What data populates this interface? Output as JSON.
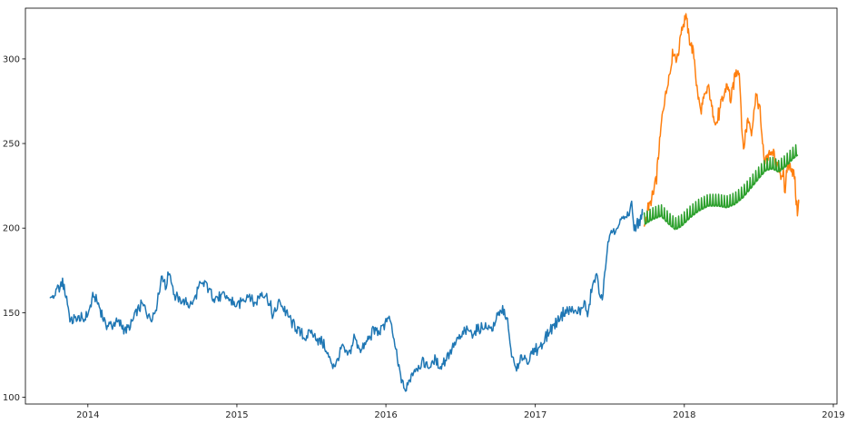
{
  "chart_data": {
    "type": "line",
    "title": "",
    "xlabel": "",
    "ylabel": "",
    "grid": false,
    "xlim": [
      "2013-08-01",
      "2019-01-10"
    ],
    "ylim": [
      96,
      330
    ],
    "x_ticks": [
      "2014",
      "2015",
      "2016",
      "2017",
      "2018",
      "2019"
    ],
    "x_tick_dates": [
      "2014-01-01",
      "2015-01-01",
      "2016-01-01",
      "2017-01-01",
      "2018-01-01",
      "2019-01-01"
    ],
    "y_ticks": [
      100,
      150,
      200,
      250,
      300
    ],
    "series": [
      {
        "color": "#1f77b4",
        "points": [
          [
            "2013-10-01",
            157
          ],
          [
            "2013-10-15",
            162
          ],
          [
            "2013-11-01",
            168
          ],
          [
            "2013-11-10",
            158
          ],
          [
            "2013-11-20",
            145
          ],
          [
            "2013-12-05",
            147
          ],
          [
            "2013-12-20",
            146
          ],
          [
            "2014-01-01",
            150
          ],
          [
            "2014-01-15",
            160
          ],
          [
            "2014-02-01",
            152
          ],
          [
            "2014-02-15",
            142
          ],
          [
            "2014-03-01",
            143
          ],
          [
            "2014-03-15",
            145
          ],
          [
            "2014-04-01",
            140
          ],
          [
            "2014-04-15",
            141
          ],
          [
            "2014-05-01",
            152
          ],
          [
            "2014-05-15",
            155
          ],
          [
            "2014-06-01",
            147
          ],
          [
            "2014-06-15",
            150
          ],
          [
            "2014-07-01",
            172
          ],
          [
            "2014-07-10",
            165
          ],
          [
            "2014-07-20",
            175
          ],
          [
            "2014-08-01",
            160
          ],
          [
            "2014-08-15",
            157
          ],
          [
            "2014-09-01",
            155
          ],
          [
            "2014-09-15",
            156
          ],
          [
            "2014-10-01",
            165
          ],
          [
            "2014-10-15",
            168
          ],
          [
            "2014-11-01",
            160
          ],
          [
            "2014-11-15",
            158
          ],
          [
            "2014-12-01",
            160
          ],
          [
            "2014-12-15",
            158
          ],
          [
            "2015-01-01",
            153
          ],
          [
            "2015-01-15",
            158
          ],
          [
            "2015-02-01",
            160
          ],
          [
            "2015-02-15",
            155
          ],
          [
            "2015-03-01",
            162
          ],
          [
            "2015-03-15",
            160
          ],
          [
            "2015-04-01",
            148
          ],
          [
            "2015-04-15",
            157
          ],
          [
            "2015-05-01",
            150
          ],
          [
            "2015-05-15",
            145
          ],
          [
            "2015-06-01",
            140
          ],
          [
            "2015-06-15",
            135
          ],
          [
            "2015-07-01",
            138
          ],
          [
            "2015-07-15",
            135
          ],
          [
            "2015-08-01",
            132
          ],
          [
            "2015-08-15",
            122
          ],
          [
            "2015-09-01",
            118
          ],
          [
            "2015-09-15",
            130
          ],
          [
            "2015-10-01",
            125
          ],
          [
            "2015-10-15",
            135
          ],
          [
            "2015-11-01",
            128
          ],
          [
            "2015-11-15",
            132
          ],
          [
            "2015-12-01",
            140
          ],
          [
            "2015-12-15",
            138
          ],
          [
            "2016-01-01",
            145
          ],
          [
            "2016-01-10",
            147
          ],
          [
            "2016-01-20",
            135
          ],
          [
            "2016-02-01",
            118
          ],
          [
            "2016-02-10",
            108
          ],
          [
            "2016-02-20",
            104
          ],
          [
            "2016-03-01",
            112
          ],
          [
            "2016-03-15",
            118
          ],
          [
            "2016-04-01",
            120
          ],
          [
            "2016-04-15",
            118
          ],
          [
            "2016-05-01",
            122
          ],
          [
            "2016-05-15",
            118
          ],
          [
            "2016-06-01",
            125
          ],
          [
            "2016-06-15",
            130
          ],
          [
            "2016-07-01",
            135
          ],
          [
            "2016-07-15",
            140
          ],
          [
            "2016-08-01",
            138
          ],
          [
            "2016-08-15",
            140
          ],
          [
            "2016-09-01",
            142
          ],
          [
            "2016-09-15",
            140
          ],
          [
            "2016-10-01",
            148
          ],
          [
            "2016-10-15",
            152
          ],
          [
            "2016-10-25",
            145
          ],
          [
            "2016-11-01",
            128
          ],
          [
            "2016-11-10",
            120
          ],
          [
            "2016-11-20",
            117
          ],
          [
            "2016-12-01",
            125
          ],
          [
            "2016-12-15",
            122
          ],
          [
            "2017-01-01",
            128
          ],
          [
            "2017-01-15",
            130
          ],
          [
            "2017-02-01",
            138
          ],
          [
            "2017-02-15",
            142
          ],
          [
            "2017-03-01",
            148
          ],
          [
            "2017-03-15",
            150
          ],
          [
            "2017-04-01",
            152
          ],
          [
            "2017-04-15",
            150
          ],
          [
            "2017-05-01",
            155
          ],
          [
            "2017-05-10",
            148
          ],
          [
            "2017-05-20",
            165
          ],
          [
            "2017-06-01",
            172
          ],
          [
            "2017-06-10",
            160
          ],
          [
            "2017-06-15",
            155
          ],
          [
            "2017-06-20",
            175
          ],
          [
            "2017-07-01",
            195
          ],
          [
            "2017-07-15",
            198
          ],
          [
            "2017-08-01",
            205
          ],
          [
            "2017-08-15",
            208
          ],
          [
            "2017-08-25",
            212
          ],
          [
            "2017-09-01",
            200
          ],
          [
            "2017-09-10",
            203
          ],
          [
            "2017-09-20",
            208
          ]
        ]
      },
      {
        "color": "#ff7f0e",
        "points": [
          [
            "2017-09-25",
            200
          ],
          [
            "2017-10-05",
            212
          ],
          [
            "2017-10-15",
            218
          ],
          [
            "2017-10-25",
            230
          ],
          [
            "2017-11-05",
            260
          ],
          [
            "2017-11-15",
            278
          ],
          [
            "2017-11-25",
            290
          ],
          [
            "2017-12-05",
            305
          ],
          [
            "2017-12-15",
            300
          ],
          [
            "2017-12-25",
            318
          ],
          [
            "2018-01-05",
            325
          ],
          [
            "2018-01-15",
            310
          ],
          [
            "2018-01-25",
            302
          ],
          [
            "2018-02-01",
            282
          ],
          [
            "2018-02-10",
            268
          ],
          [
            "2018-02-20",
            278
          ],
          [
            "2018-03-01",
            283
          ],
          [
            "2018-03-10",
            270
          ],
          [
            "2018-03-20",
            262
          ],
          [
            "2018-04-01",
            272
          ],
          [
            "2018-04-15",
            285
          ],
          [
            "2018-04-25",
            275
          ],
          [
            "2018-05-05",
            290
          ],
          [
            "2018-05-15",
            295
          ],
          [
            "2018-05-25",
            245
          ],
          [
            "2018-06-05",
            265
          ],
          [
            "2018-06-15",
            258
          ],
          [
            "2018-06-25",
            278
          ],
          [
            "2018-07-05",
            270
          ],
          [
            "2018-07-15",
            240
          ],
          [
            "2018-07-25",
            242
          ],
          [
            "2018-08-05",
            245
          ],
          [
            "2018-08-15",
            238
          ],
          [
            "2018-08-25",
            230
          ],
          [
            "2018-09-01",
            236
          ],
          [
            "2018-09-05",
            217
          ],
          [
            "2018-09-10",
            238
          ],
          [
            "2018-09-20",
            235
          ],
          [
            "2018-09-27",
            232
          ],
          [
            "2018-10-01",
            220
          ],
          [
            "2018-10-05",
            210
          ],
          [
            "2018-10-08",
            215
          ]
        ]
      },
      {
        "color": "#2ca02c",
        "points": [
          [
            "2017-09-25",
            202
          ],
          [
            "2017-10-15",
            205
          ],
          [
            "2017-11-05",
            207
          ],
          [
            "2017-11-25",
            202
          ],
          [
            "2017-12-10",
            199
          ],
          [
            "2017-12-25",
            201
          ],
          [
            "2018-01-15",
            206
          ],
          [
            "2018-02-05",
            210
          ],
          [
            "2018-03-01",
            213
          ],
          [
            "2018-03-25",
            213
          ],
          [
            "2018-04-15",
            212
          ],
          [
            "2018-05-05",
            214
          ],
          [
            "2018-05-25",
            218
          ],
          [
            "2018-06-15",
            224
          ],
          [
            "2018-07-05",
            230
          ],
          [
            "2018-07-20",
            234
          ],
          [
            "2018-08-05",
            235
          ],
          [
            "2018-08-20",
            233
          ],
          [
            "2018-09-05",
            236
          ],
          [
            "2018-09-25",
            241
          ],
          [
            "2018-10-05",
            243
          ]
        ],
        "weekly_amplitude": 7
      }
    ]
  }
}
